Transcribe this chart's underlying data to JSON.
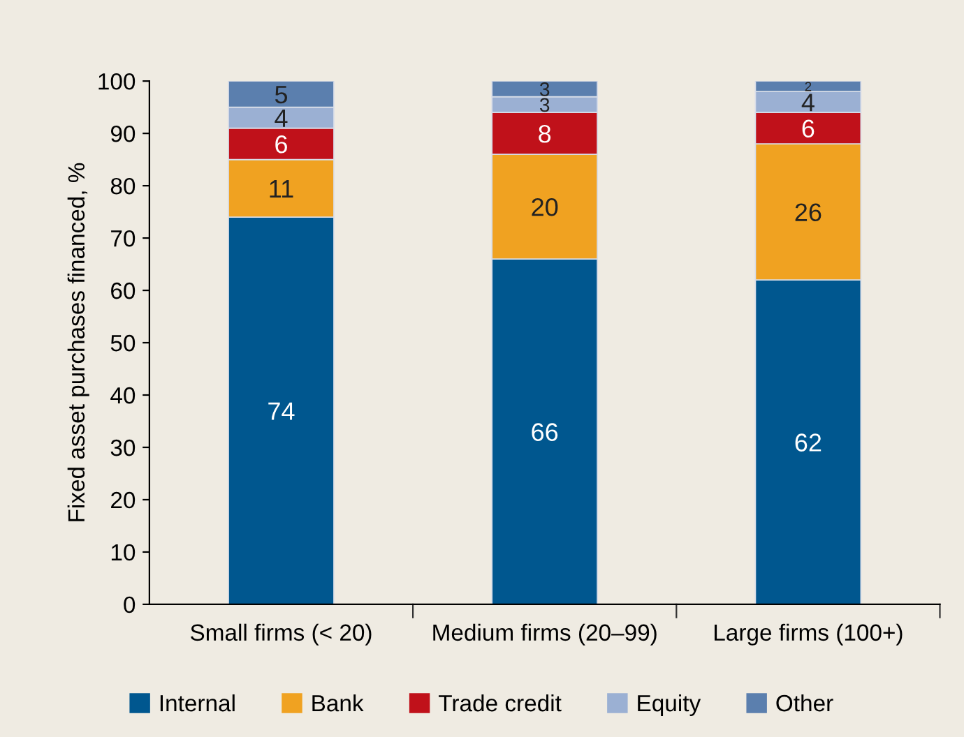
{
  "chart_data": {
    "type": "bar",
    "stacked": true,
    "ylabel": "Fixed asset purchases financed, %",
    "categories": [
      "Small firms (< 20)",
      "Medium firms (20–99)",
      "Large firms (100+)"
    ],
    "series": [
      {
        "name": "Internal",
        "color": "#00578f",
        "values": [
          74,
          66,
          62
        ]
      },
      {
        "name": "Bank",
        "color": "#f0a221",
        "values": [
          11,
          20,
          26
        ]
      },
      {
        "name": "Trade credit",
        "color": "#c0111a",
        "values": [
          6,
          8,
          6
        ]
      },
      {
        "name": "Equity",
        "color": "#9bb0d3",
        "values": [
          4,
          3,
          4
        ]
      },
      {
        "name": "Other",
        "color": "#5b7fae",
        "values": [
          5,
          3,
          2
        ]
      }
    ],
    "ylim": [
      0,
      100
    ],
    "yticks": [
      0,
      10,
      20,
      30,
      40,
      50,
      60,
      70,
      80,
      90,
      100
    ],
    "data_labels": true,
    "grid": false,
    "legend": "bottom"
  }
}
